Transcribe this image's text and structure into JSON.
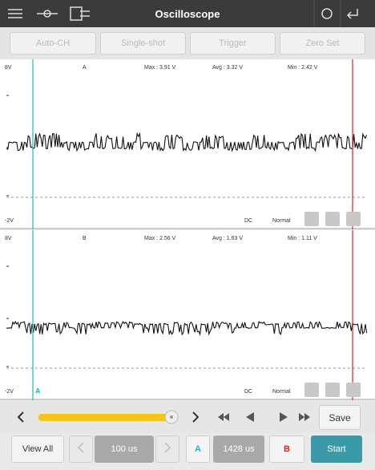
{
  "top_bar": {
    "title": "Oscilloscope"
  },
  "toolbar": {
    "buttons": [
      "Auto-CH",
      "Single-shot",
      "Trigger",
      "Zero Set"
    ]
  },
  "channels": [
    {
      "top_label": "8V",
      "name": "A",
      "max": "Max : 3.91 V",
      "avg": "Avg : 3.32 V",
      "min": "Min : 2.42 V",
      "bottom_label": "-2V",
      "coupling": "DC",
      "mode": "Normal"
    },
    {
      "top_label": "8V",
      "name": "B",
      "max": "Max : 2.56 V",
      "avg": "Avg : 1.63 V",
      "min": "Min : 1.11 V",
      "bottom_label": "-2V",
      "coupling": "DC",
      "mode": "Normal"
    }
  ],
  "cursor_marker": "A",
  "controls": {
    "save": "Save",
    "view_all": "View All",
    "time_base": "100 us",
    "cursor_a": "A",
    "cursor_time": "1428 us",
    "cursor_b": "B",
    "start": "Start"
  }
}
